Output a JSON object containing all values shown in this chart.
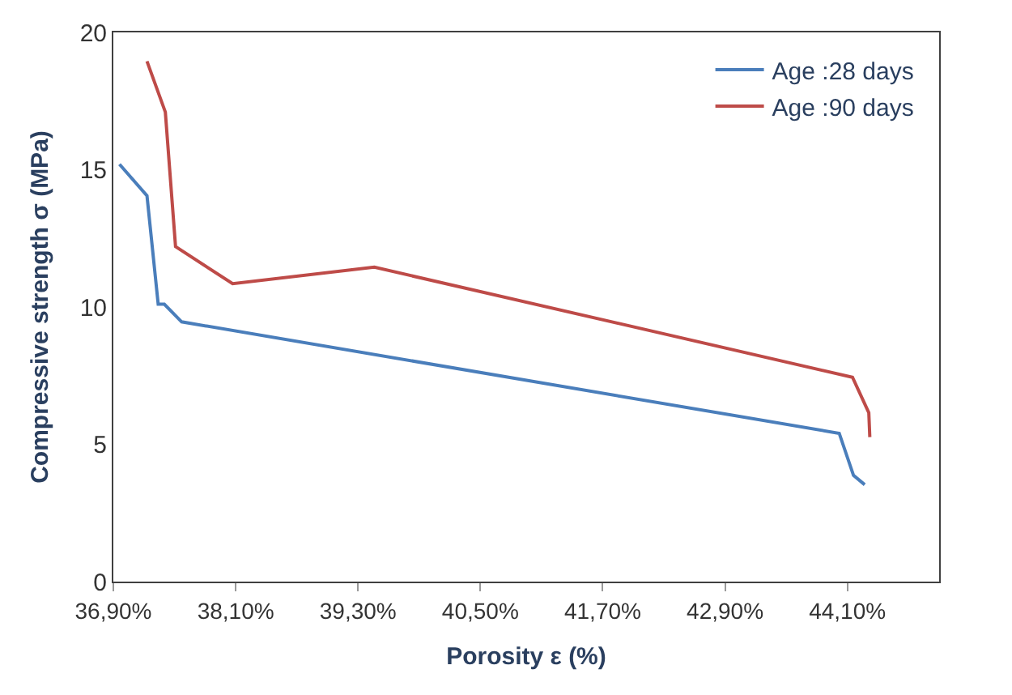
{
  "chart_data": {
    "type": "line",
    "xlabel": "Porosity ε (%)",
    "ylabel": "Compressive strength σ (MPa)",
    "xlim": [
      36.9,
      45.0
    ],
    "xticks": [
      {
        "value": 36.9,
        "label": "36,90%"
      },
      {
        "value": 38.1,
        "label": "38,10%"
      },
      {
        "value": 39.3,
        "label": "39,30%"
      },
      {
        "value": 40.5,
        "label": "40,50%"
      },
      {
        "value": 41.7,
        "label": "41,70%"
      },
      {
        "value": 42.9,
        "label": "42,90%"
      },
      {
        "value": 44.1,
        "label": "44,10%"
      }
    ],
    "ylim": [
      0,
      20
    ],
    "yticks": [
      0,
      5,
      10,
      15,
      20
    ],
    "legend": "top right",
    "marker": "none",
    "line_style": "solid",
    "series": [
      {
        "name": "Age :28 days",
        "color": "#4a7ebb",
        "x": [
          36.96,
          37.23,
          37.34,
          37.4,
          37.57,
          44.02,
          44.16,
          44.27
        ],
        "values": [
          15.2,
          14.05,
          10.1,
          10.1,
          9.46,
          5.4,
          3.87,
          3.53
        ]
      },
      {
        "name": "Age :90 days",
        "color": "#be4b48",
        "x": [
          37.23,
          37.41,
          37.51,
          38.07,
          39.46,
          44.15,
          44.31,
          44.32
        ],
        "values": [
          18.95,
          17.1,
          12.2,
          10.85,
          11.45,
          7.44,
          6.15,
          5.26
        ]
      }
    ]
  }
}
